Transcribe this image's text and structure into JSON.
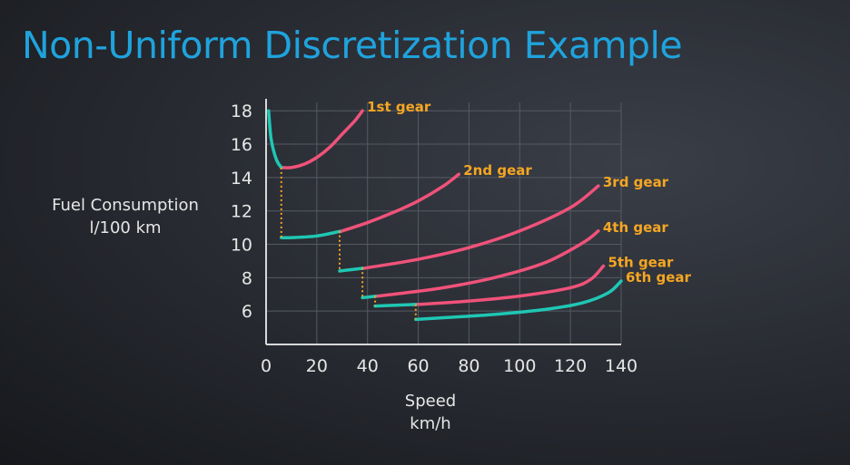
{
  "title": "Non-Uniform Discretization Example",
  "chart_data": {
    "type": "line",
    "title": "Non-Uniform Discretization Example",
    "ylabel": [
      "Fuel Consumption",
      "l/100 km"
    ],
    "xlabel": [
      "Speed",
      "km/h"
    ],
    "xlim": [
      0,
      140
    ],
    "ylim": [
      4,
      18.5
    ],
    "xticks": [
      0,
      20,
      40,
      60,
      80,
      100,
      120,
      140
    ],
    "yticks": [
      6,
      8,
      10,
      12,
      14,
      16,
      18
    ],
    "grid": true,
    "colors": {
      "used": "#1fc7b4",
      "unused": "#f0527a",
      "switch": "#f5a623",
      "gear_label": "#f5a623",
      "axis": "#d8d8d8",
      "grid": "#555a63"
    },
    "series": [
      {
        "name": "1st gear",
        "x": [
          1,
          2,
          4,
          6,
          10,
          15,
          20,
          25,
          30,
          35,
          38
        ],
        "y": [
          18,
          16.3,
          15.1,
          14.6,
          14.6,
          14.8,
          15.2,
          15.8,
          16.6,
          17.4,
          18
        ]
      },
      {
        "name": "2nd gear",
        "x": [
          6,
          10,
          20,
          30,
          40,
          50,
          60,
          70,
          76
        ],
        "y": [
          10.4,
          10.4,
          10.5,
          10.8,
          11.3,
          11.9,
          12.6,
          13.5,
          14.2
        ]
      },
      {
        "name": "3rd gear",
        "x": [
          29,
          40,
          60,
          80,
          100,
          120,
          131
        ],
        "y": [
          8.4,
          8.6,
          9.1,
          9.8,
          10.8,
          12.2,
          13.5
        ]
      },
      {
        "name": "4th gear",
        "x": [
          38,
          50,
          70,
          90,
          110,
          125,
          131
        ],
        "y": [
          6.8,
          7.0,
          7.4,
          8.0,
          8.9,
          10.1,
          10.8
        ]
      },
      {
        "name": "5th gear",
        "x": [
          43,
          60,
          80,
          100,
          120,
          128,
          133
        ],
        "y": [
          6.3,
          6.4,
          6.6,
          6.9,
          7.4,
          7.9,
          8.7
        ]
      },
      {
        "name": "6th gear",
        "x": [
          59,
          70,
          90,
          110,
          125,
          135,
          140
        ],
        "y": [
          5.5,
          5.6,
          5.8,
          6.1,
          6.5,
          7.1,
          7.8
        ]
      }
    ],
    "used_ranges": [
      [
        0,
        6
      ],
      [
        6,
        29
      ],
      [
        29,
        38
      ],
      [
        38,
        43
      ],
      [
        43,
        59
      ],
      [
        59,
        140
      ]
    ],
    "gear_shifts": [
      {
        "x": 6,
        "y_from": 14.6,
        "y_to": 10.4
      },
      {
        "x": 29,
        "y_from": 10.8,
        "y_to": 8.4
      },
      {
        "x": 38,
        "y_from": 8.6,
        "y_to": 6.8
      },
      {
        "x": 43,
        "y_from": 6.9,
        "y_to": 6.3
      },
      {
        "x": 59,
        "y_from": 6.4,
        "y_to": 5.5
      }
    ]
  }
}
